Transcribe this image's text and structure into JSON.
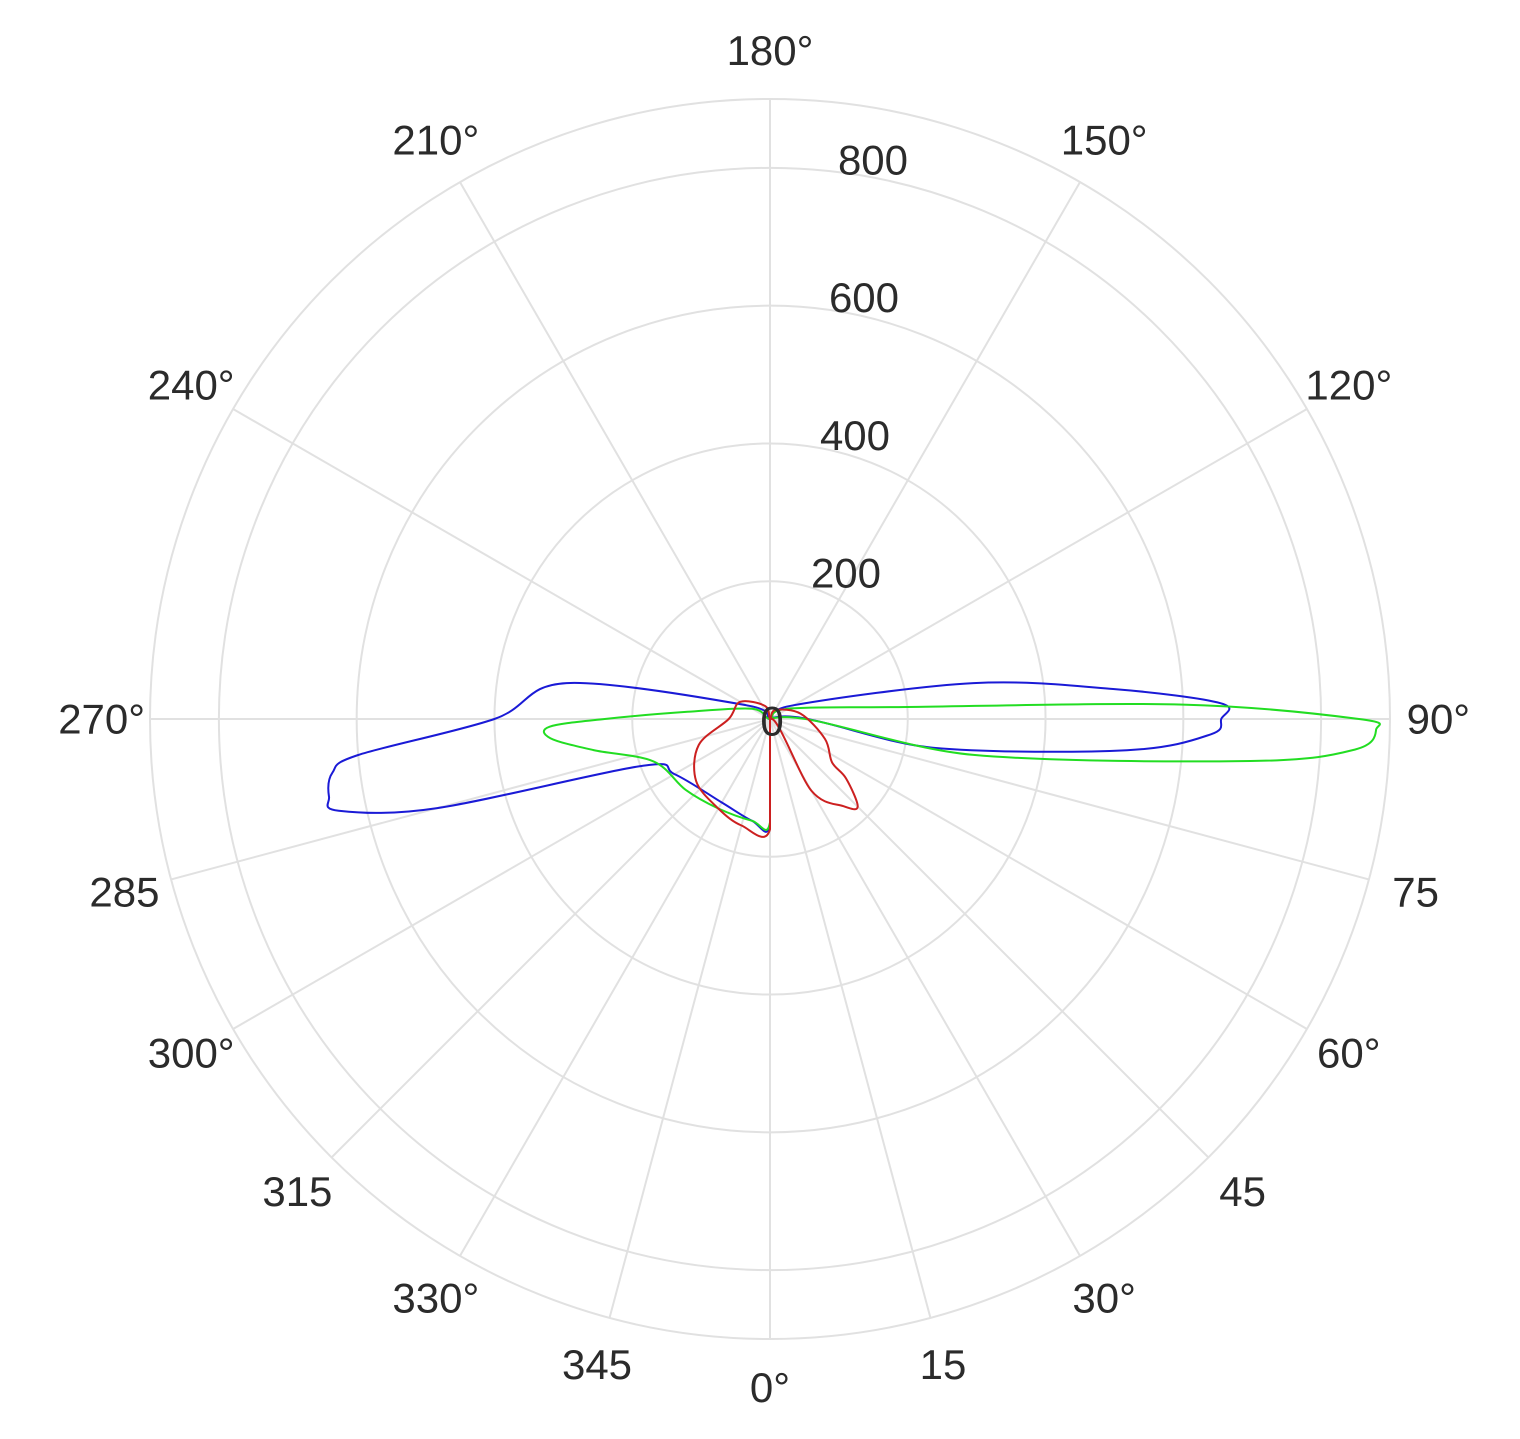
{
  "chart_data": {
    "type": "polar-line",
    "theta_zero_location": "bottom",
    "theta_direction": "counterclockwise",
    "r_range": [
      0,
      900
    ],
    "r_ticks": [
      0,
      200,
      400,
      600,
      800
    ],
    "r_tick_labels": [
      "0",
      "200",
      "400",
      "600",
      "800"
    ],
    "angle_ticks": [
      0,
      15,
      30,
      45,
      60,
      75,
      90,
      120,
      150,
      180,
      210,
      240,
      270,
      285,
      300,
      315,
      330,
      345
    ],
    "angle_tick_labels": [
      "0°",
      "15",
      "30°",
      "45",
      "60°",
      "75",
      "90°",
      "120°",
      "150°",
      "180°",
      "210°",
      "240°",
      "270°",
      "285",
      "300°",
      "315",
      "330°",
      "345"
    ],
    "grid": true,
    "series": [
      {
        "color": "#1a1ad6",
        "points": [
          [
            0,
            0
          ],
          [
            80,
            240
          ],
          [
            85,
            520
          ],
          [
            88,
            640
          ],
          [
            90,
            655
          ],
          [
            92,
            655
          ],
          [
            95,
            500
          ],
          [
            100,
            300
          ],
          [
            120,
            40
          ],
          [
            180,
            0
          ],
          [
            240,
            40
          ],
          [
            260,
            300
          ],
          [
            270,
            400
          ],
          [
            275,
            600
          ],
          [
            277,
            640
          ],
          [
            280,
            650
          ],
          [
            282,
            640
          ],
          [
            285,
            500
          ],
          [
            290,
            200
          ],
          [
            300,
            160
          ],
          [
            330,
            140
          ],
          [
            350,
            150
          ],
          [
            0,
            153
          ]
        ]
      },
      {
        "color": "#22dd22",
        "points": [
          [
            0,
            0
          ],
          [
            80,
            300
          ],
          [
            85,
            700
          ],
          [
            87,
            850
          ],
          [
            89,
            880
          ],
          [
            90,
            855
          ],
          [
            92,
            600
          ],
          [
            95,
            200
          ],
          [
            120,
            30
          ],
          [
            180,
            0
          ],
          [
            240,
            30
          ],
          [
            265,
            120
          ],
          [
            270,
            240
          ],
          [
            272,
            320
          ],
          [
            275,
            320
          ],
          [
            280,
            260
          ],
          [
            290,
            180
          ],
          [
            310,
            160
          ],
          [
            330,
            150
          ],
          [
            350,
            150
          ],
          [
            0,
            150
          ]
        ]
      },
      {
        "color": "#cc2020",
        "points": [
          [
            0,
            0
          ],
          [
            30,
            120
          ],
          [
            40,
            165
          ],
          [
            45,
            180
          ],
          [
            52,
            140
          ],
          [
            55,
            110
          ],
          [
            70,
            85
          ],
          [
            100,
            45
          ],
          [
            150,
            15
          ],
          [
            180,
            0
          ],
          [
            200,
            20
          ],
          [
            240,
            50
          ],
          [
            270,
            60
          ],
          [
            290,
            110
          ],
          [
            310,
            140
          ],
          [
            330,
            150
          ],
          [
            345,
            160
          ],
          [
            0,
            160
          ]
        ]
      }
    ]
  }
}
